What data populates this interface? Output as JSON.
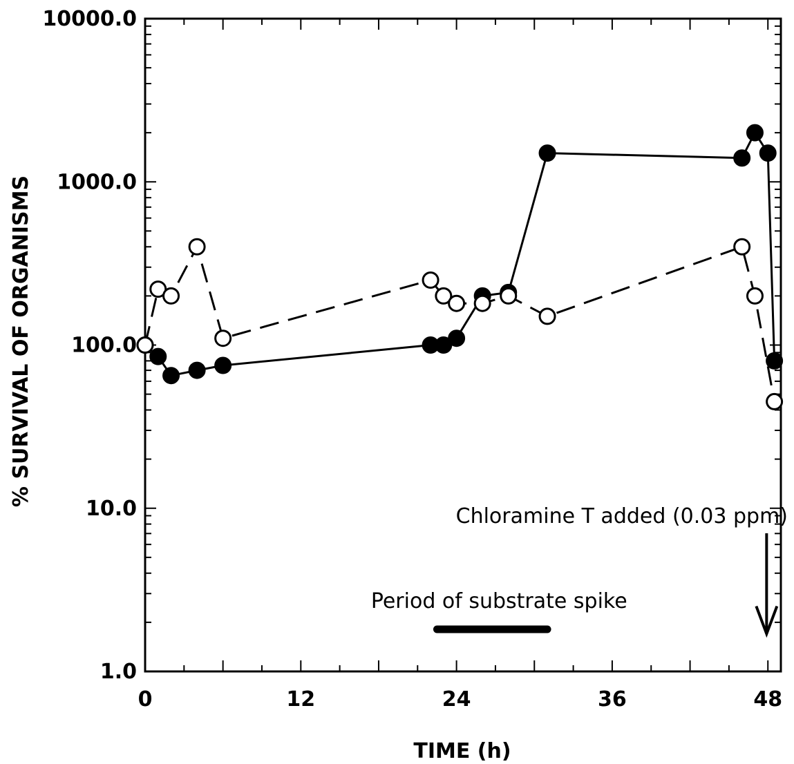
{
  "chart_data": {
    "type": "line",
    "xlabel": "TIME (h)",
    "ylabel": "% SURVIVAL OF ORGANISMS",
    "xlim": [
      0,
      49
    ],
    "ylim": [
      1,
      10000
    ],
    "y_scale": "log",
    "x_ticks": [
      0,
      12,
      24,
      36,
      48
    ],
    "x_tick_labels": [
      "0",
      "12",
      "24",
      "36",
      "48"
    ],
    "y_ticks": [
      1,
      10,
      100,
      1000,
      10000
    ],
    "y_tick_labels": [
      "1.0",
      "10.0",
      "100.0",
      "1000.0",
      "10000.0"
    ],
    "grid": false,
    "series": [
      {
        "marker": "filled-circle",
        "line_style": "solid",
        "color": "#000000",
        "x": [
          0,
          1,
          2,
          4,
          6,
          22,
          23,
          24,
          26,
          28,
          31,
          46,
          47,
          48,
          48.5
        ],
        "y": [
          100,
          85,
          65,
          70,
          75,
          100,
          100,
          110,
          200,
          210,
          1500,
          1400,
          2000,
          1500,
          80
        ]
      },
      {
        "marker": "open-circle",
        "line_style": "dashed",
        "color": "#000000",
        "x": [
          0,
          1,
          2,
          4,
          6,
          22,
          23,
          24,
          26,
          28,
          31,
          46,
          47,
          48.5
        ],
        "y": [
          100,
          220,
          200,
          400,
          110,
          250,
          200,
          180,
          180,
          200,
          150,
          400,
          200,
          45
        ]
      }
    ],
    "annotations": [
      {
        "text": "Chloramine T added (0.03 ppm)",
        "x": 47.9,
        "y": 1.7,
        "arrow": "down"
      },
      {
        "text": "Period of substrate spike",
        "x_start": 22.5,
        "x_end": 31
      }
    ]
  }
}
